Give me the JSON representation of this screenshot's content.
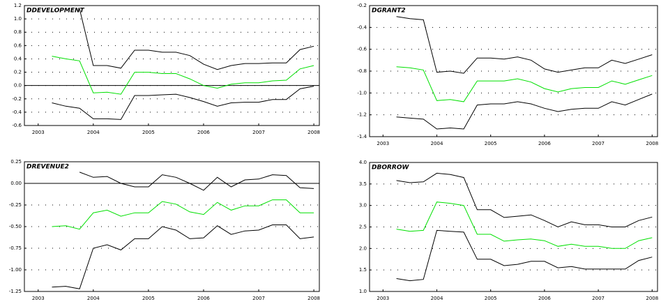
{
  "chart_data": [
    {
      "type": "line",
      "title": "DDEVELOPMENT",
      "x": [
        2003.25,
        2003.5,
        2003.75,
        2004,
        2004.25,
        2004.5,
        2004.75,
        2005,
        2005.25,
        2005.5,
        2005.75,
        2006,
        2006.25,
        2006.5,
        2006.75,
        2007,
        2007.25,
        2007.5,
        2007.75,
        2008
      ],
      "xlim": [
        2002.75,
        2008.1
      ],
      "xticks": [
        2003,
        2004,
        2005,
        2006,
        2007,
        2008
      ],
      "ylim": [
        -0.6,
        1.2
      ],
      "yticks": [
        -0.6,
        -0.4,
        -0.2,
        {
          "value": 0,
          "label": "0.0"
        },
        0.2,
        0.4,
        0.6,
        0.8,
        {
          "value": 1,
          "label": "1.0"
        },
        1.2
      ],
      "grid": true,
      "zero_line": true,
      "series": [
        {
          "color": "#000000",
          "values": [
            null,
            null,
            1.15,
            0.3,
            0.3,
            0.26,
            0.53,
            0.53,
            0.5,
            0.5,
            0.45,
            0.32,
            0.24,
            0.3,
            0.33,
            0.33,
            0.34,
            0.34,
            0.54,
            0.59
          ]
        },
        {
          "color": "#00e000",
          "values": [
            0.44,
            0.4,
            0.37,
            -0.11,
            -0.1,
            -0.13,
            0.2,
            0.2,
            0.18,
            0.18,
            0.1,
            0.0,
            -0.04,
            0.02,
            0.04,
            0.04,
            0.07,
            0.08,
            0.25,
            0.3
          ]
        },
        {
          "color": "#000000",
          "values": [
            -0.26,
            -0.31,
            -0.34,
            -0.5,
            -0.5,
            -0.51,
            -0.15,
            -0.15,
            -0.14,
            -0.13,
            -0.18,
            -0.24,
            -0.31,
            -0.26,
            -0.25,
            -0.25,
            -0.21,
            -0.21,
            -0.05,
            -0.01
          ]
        }
      ]
    },
    {
      "type": "line",
      "title": "DGRANT2",
      "x": [
        2003.25,
        2003.5,
        2003.75,
        2004,
        2004.25,
        2004.5,
        2004.75,
        2005,
        2005.25,
        2005.5,
        2005.75,
        2006,
        2006.25,
        2006.5,
        2006.75,
        2007,
        2007.25,
        2007.5,
        2007.75,
        2008
      ],
      "xlim": [
        2002.75,
        2008.1
      ],
      "xticks": [
        2003,
        2004,
        2005,
        2006,
        2007,
        2008
      ],
      "ylim": [
        -1.4,
        -0.2
      ],
      "yticks": [
        -1.4,
        -1.2,
        {
          "value": -1,
          "label": "-1.0"
        },
        -0.8,
        -0.6,
        -0.4,
        -0.2
      ],
      "grid": true,
      "zero_line": false,
      "series": [
        {
          "color": "#000000",
          "values": [
            -0.3,
            -0.32,
            -0.33,
            -0.81,
            -0.8,
            -0.82,
            -0.68,
            -0.68,
            -0.69,
            -0.67,
            -0.7,
            -0.78,
            -0.81,
            -0.79,
            -0.77,
            -0.77,
            -0.7,
            -0.73,
            -0.69,
            -0.65
          ]
        },
        {
          "color": "#00e000",
          "values": [
            -0.76,
            -0.77,
            -0.79,
            -1.07,
            -1.06,
            -1.08,
            -0.89,
            -0.89,
            -0.89,
            -0.87,
            -0.9,
            -0.96,
            -0.99,
            -0.96,
            -0.95,
            -0.95,
            -0.89,
            -0.92,
            -0.88,
            -0.84
          ]
        },
        {
          "color": "#000000",
          "values": [
            -1.22,
            -1.23,
            -1.24,
            -1.33,
            -1.32,
            -1.33,
            -1.11,
            -1.1,
            -1.1,
            -1.08,
            -1.1,
            -1.14,
            -1.17,
            -1.15,
            -1.14,
            -1.14,
            -1.08,
            -1.11,
            -1.06,
            -1.01
          ]
        }
      ]
    },
    {
      "type": "line",
      "title": "DREVENUE2",
      "x": [
        2003.25,
        2003.5,
        2003.75,
        2004,
        2004.25,
        2004.5,
        2004.75,
        2005,
        2005.25,
        2005.5,
        2005.75,
        2006,
        2006.25,
        2006.5,
        2006.75,
        2007,
        2007.25,
        2007.5,
        2007.75,
        2008
      ],
      "xlim": [
        2002.75,
        2008.1
      ],
      "xticks": [
        2003,
        2004,
        2005,
        2006,
        2007,
        2008
      ],
      "ylim": [
        -1.25,
        0.25
      ],
      "yticks": [
        -1.25,
        {
          "value": -1,
          "label": "-1.00"
        },
        -0.75,
        {
          "value": -0.5,
          "label": "-0.50"
        },
        -0.25,
        {
          "value": 0,
          "label": "0.00"
        },
        0.25
      ],
      "grid": true,
      "zero_line": true,
      "series": [
        {
          "color": "#000000",
          "values": [
            null,
            null,
            0.13,
            0.07,
            0.08,
            0.0,
            -0.04,
            -0.04,
            0.1,
            0.07,
            0.0,
            -0.08,
            0.07,
            -0.04,
            0.04,
            0.05,
            0.1,
            0.09,
            -0.05,
            -0.06
          ]
        },
        {
          "color": "#00e000",
          "values": [
            -0.5,
            -0.49,
            -0.53,
            -0.34,
            -0.31,
            -0.38,
            -0.34,
            -0.34,
            -0.21,
            -0.24,
            -0.33,
            -0.36,
            -0.22,
            -0.31,
            -0.26,
            -0.26,
            -0.19,
            -0.19,
            -0.34,
            -0.34
          ]
        },
        {
          "color": "#000000",
          "values": [
            -1.2,
            -1.19,
            -1.22,
            -0.75,
            -0.71,
            -0.77,
            -0.64,
            -0.64,
            -0.5,
            -0.54,
            -0.64,
            -0.63,
            -0.49,
            -0.59,
            -0.55,
            -0.54,
            -0.48,
            -0.48,
            -0.64,
            -0.62
          ]
        }
      ]
    },
    {
      "type": "line",
      "title": "DBORROW",
      "x": [
        2003.25,
        2003.5,
        2003.75,
        2004,
        2004.25,
        2004.5,
        2004.75,
        2005,
        2005.25,
        2005.5,
        2005.75,
        2006,
        2006.25,
        2006.5,
        2006.75,
        2007,
        2007.25,
        2007.5,
        2007.75,
        2008
      ],
      "xlim": [
        2002.75,
        2008.1
      ],
      "xticks": [
        2003,
        2004,
        2005,
        2006,
        2007,
        2008
      ],
      "ylim": [
        1.0,
        4.0
      ],
      "yticks": [
        {
          "value": 1,
          "label": "1.0"
        },
        1.5,
        {
          "value": 2,
          "label": "2.0"
        },
        2.5,
        {
          "value": 3,
          "label": "3.0"
        },
        3.5,
        {
          "value": 4,
          "label": "4.0"
        }
      ],
      "grid": true,
      "zero_line": false,
      "series": [
        {
          "color": "#000000",
          "values": [
            3.58,
            3.53,
            3.55,
            3.75,
            3.72,
            3.65,
            2.9,
            2.9,
            2.72,
            2.75,
            2.78,
            2.65,
            2.5,
            2.62,
            2.55,
            2.55,
            2.5,
            2.5,
            2.65,
            2.73
          ]
        },
        {
          "color": "#00e000",
          "values": [
            2.45,
            2.4,
            2.42,
            3.08,
            3.05,
            3.0,
            2.33,
            2.33,
            2.17,
            2.2,
            2.22,
            2.18,
            2.05,
            2.1,
            2.05,
            2.05,
            2.0,
            2.0,
            2.18,
            2.25
          ]
        },
        {
          "color": "#000000",
          "values": [
            1.3,
            1.25,
            1.28,
            2.42,
            2.4,
            2.38,
            1.75,
            1.75,
            1.6,
            1.63,
            1.7,
            1.7,
            1.55,
            1.58,
            1.52,
            1.52,
            1.52,
            1.52,
            1.72,
            1.8
          ]
        }
      ]
    }
  ]
}
